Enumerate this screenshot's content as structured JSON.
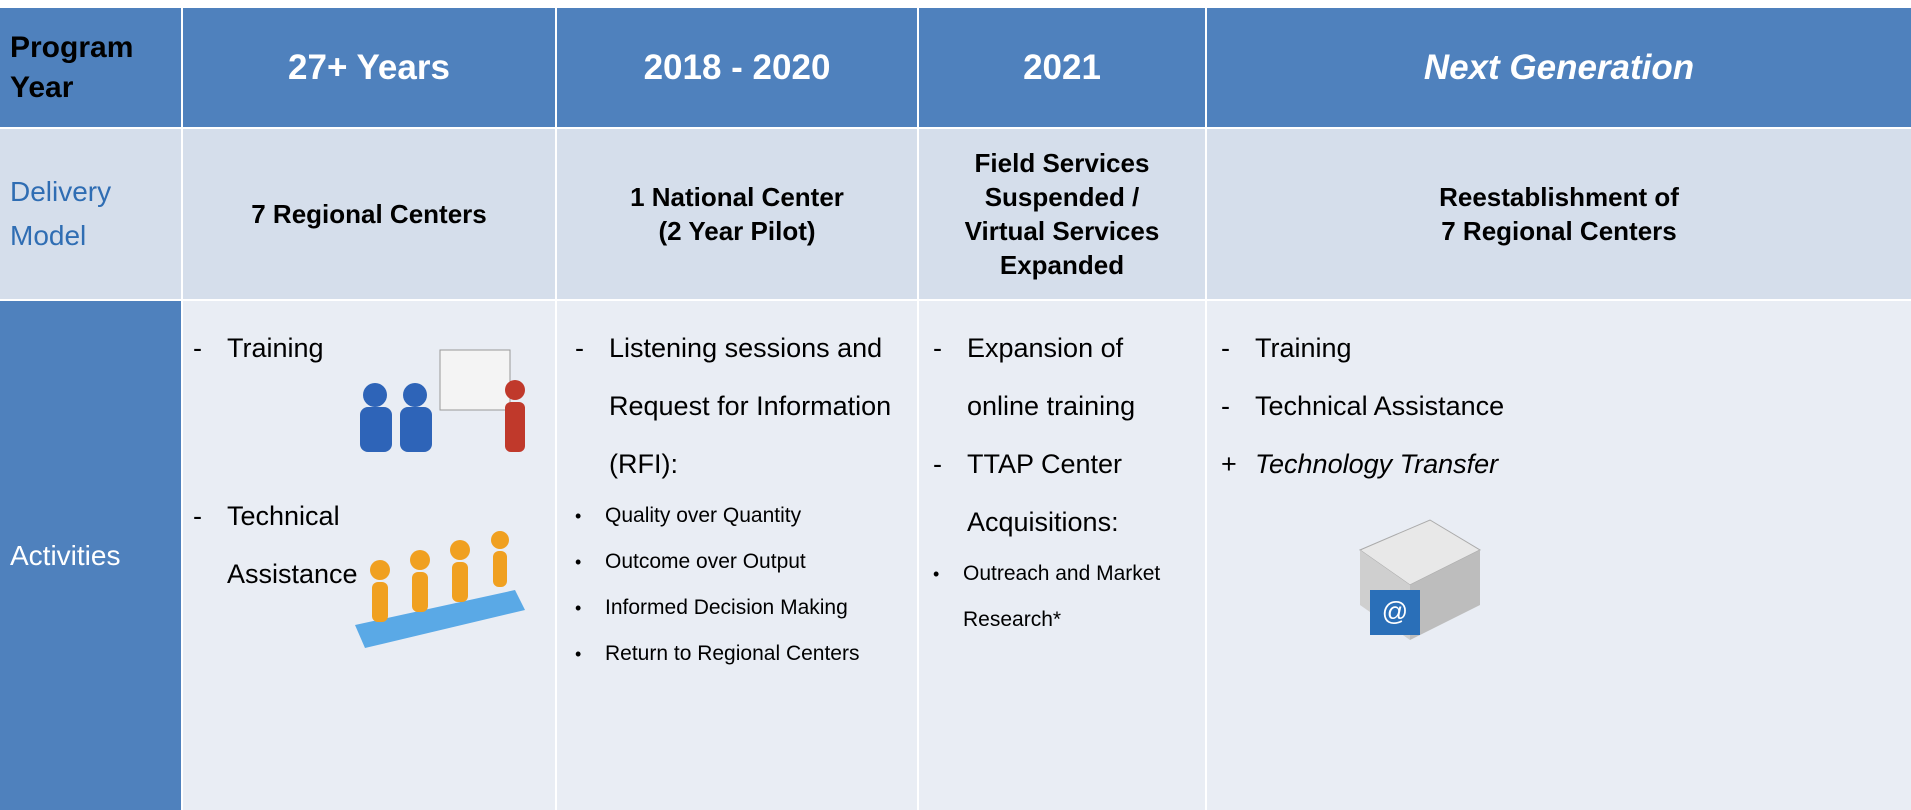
{
  "table": {
    "header": [
      "Program Year",
      "27+ Years",
      "2018 - 2020",
      "2021",
      "Next Generation"
    ],
    "rows": [
      {
        "label": "Delivery Model",
        "cells": [
          [
            "7 Regional Centers"
          ],
          [
            "1 National Center",
            "(2 Year Pilot)"
          ],
          [
            "Field Services",
            "Suspended /",
            "Virtual Services",
            "Expanded"
          ],
          [
            "Reestablishment of",
            "7 Regional Centers"
          ]
        ]
      },
      {
        "label": "Activities",
        "cells": [
          [
            {
              "marker": "-",
              "text": "Training"
            },
            {
              "marker": "-",
              "text": "Technical Assistance"
            }
          ],
          [
            {
              "marker": "-",
              "text": "Listening sessions and Request for Information (RFI):"
            },
            {
              "marker": "•",
              "text": "Quality over Quantity"
            },
            {
              "marker": "•",
              "text": "Outcome over Output"
            },
            {
              "marker": "•",
              "text": "Informed Decision Making"
            },
            {
              "marker": "•",
              "text": "Return to Regional Centers"
            }
          ],
          [
            {
              "marker": "-",
              "text": "Expansion of online training"
            },
            {
              "marker": "-",
              "text": "TTAP Center Acquisitions:"
            },
            {
              "marker": "•",
              "text": "Outreach and Market Research*"
            }
          ],
          [
            {
              "marker": "-",
              "text": "Training"
            },
            {
              "marker": "-",
              "text": "Technical Assistance"
            },
            {
              "marker": "+",
              "text": "Technology Transfer"
            }
          ]
        ]
      }
    ]
  }
}
